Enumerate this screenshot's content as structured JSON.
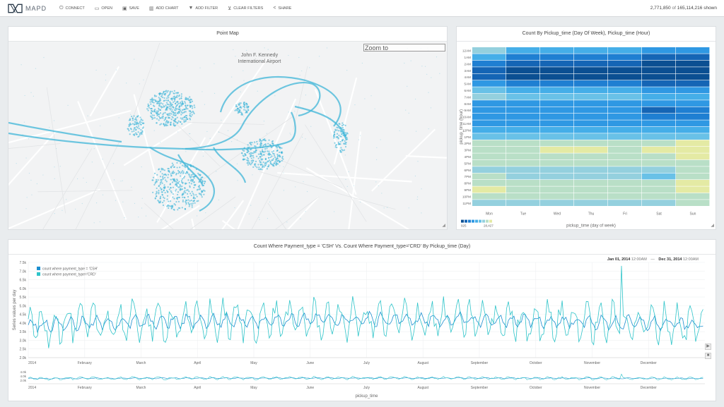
{
  "app": {
    "name": "MAPD"
  },
  "toolbar": [
    {
      "label": "CONNECT",
      "icon": "power-icon",
      "glyph": "⏻"
    },
    {
      "label": "OPEN",
      "icon": "folder-icon",
      "glyph": "▭"
    },
    {
      "label": "SAVE",
      "icon": "save-icon",
      "glyph": "▣"
    },
    {
      "label": "ADD CHART",
      "icon": "bar-chart-icon",
      "glyph": "▥"
    },
    {
      "label": "ADD FILTER",
      "icon": "filter-icon",
      "glyph": "▼"
    },
    {
      "label": "CLEAR FILTERS",
      "icon": "clear-filter-icon",
      "glyph": "⊻"
    },
    {
      "label": "SHARE",
      "icon": "share-icon",
      "glyph": "<"
    }
  ],
  "count": {
    "shown": "2,771,850",
    "total": "165,114,216",
    "suffix": "shown"
  },
  "point_map": {
    "title": "Point Map",
    "place_label_line1": "John F. Kennedy",
    "place_label_line2": "International Airport",
    "zoom_placeholder": "Zoom to",
    "point_color": "#3fb6d8"
  },
  "heatmap": {
    "title": "Count By Pickup_time (Day Of Week), Pickup_time (Hour)",
    "ylabel": "pickup_time (hour)",
    "xlabel": "pickup_time (day of week)",
    "days": [
      "Mon",
      "Tue",
      "Wed",
      "Thu",
      "Fri",
      "Sat",
      "Sun"
    ],
    "hours": [
      "12AM",
      "1AM",
      "2AM",
      "3AM",
      "4AM",
      "5AM",
      "6AM",
      "7AM",
      "8AM",
      "9AM",
      "10AM",
      "11AM",
      "12PM",
      "1PM",
      "2PM",
      "3PM",
      "4PM",
      "5PM",
      "6PM",
      "7PM",
      "8PM",
      "9PM",
      "10PM",
      "11PM"
    ],
    "legend_min": "925",
    "legend_max": "28,427",
    "colors": [
      "#0b4f92",
      "#1565b5",
      "#1f7fd2",
      "#2f98e3",
      "#45aee8",
      "#69c1e7",
      "#94d0de",
      "#b9dfc7",
      "#e4eaa4"
    ],
    "matrix": [
      [
        6,
        4,
        4,
        4,
        4,
        3,
        3
      ],
      [
        4,
        2,
        2,
        2,
        2,
        1,
        1
      ],
      [
        2,
        1,
        1,
        1,
        1,
        0,
        0
      ],
      [
        1,
        0,
        0,
        0,
        0,
        0,
        0
      ],
      [
        1,
        0,
        0,
        0,
        0,
        0,
        0
      ],
      [
        3,
        2,
        2,
        2,
        2,
        1,
        1
      ],
      [
        5,
        4,
        4,
        4,
        4,
        3,
        3
      ],
      [
        6,
        5,
        5,
        5,
        5,
        4,
        4
      ],
      [
        3,
        3,
        3,
        3,
        3,
        3,
        3
      ],
      [
        3,
        3,
        3,
        3,
        3,
        1,
        2
      ],
      [
        3,
        3,
        3,
        3,
        3,
        2,
        2
      ],
      [
        3,
        3,
        3,
        3,
        3,
        3,
        3
      ],
      [
        4,
        4,
        4,
        4,
        4,
        4,
        4
      ],
      [
        5,
        5,
        5,
        5,
        5,
        5,
        5
      ],
      [
        7,
        7,
        7,
        7,
        7,
        7,
        8
      ],
      [
        7,
        7,
        8,
        8,
        7,
        8,
        8
      ],
      [
        7,
        7,
        7,
        7,
        7,
        7,
        8
      ],
      [
        7,
        7,
        7,
        7,
        7,
        7,
        7
      ],
      [
        6,
        6,
        6,
        6,
        6,
        6,
        7
      ],
      [
        7,
        6,
        6,
        6,
        6,
        5,
        7
      ],
      [
        7,
        7,
        7,
        7,
        7,
        7,
        8
      ],
      [
        8,
        7,
        7,
        7,
        7,
        7,
        8
      ],
      [
        7,
        7,
        7,
        7,
        7,
        7,
        7
      ],
      [
        6,
        6,
        6,
        6,
        6,
        6,
        7
      ]
    ]
  },
  "chart_data": {
    "type": "line",
    "title": "Count Where Payment_type = 'CSH' Vs. Count Where Payment_type='CRD' By Pickup_time (Day)",
    "xlabel": "pickup_time",
    "ylabel": "Series values per day",
    "yticks": [
      "7.5k",
      "7.0k",
      "6.5k",
      "6.0k",
      "5.5k",
      "5.0k",
      "4.5k",
      "4.0k",
      "3.5k",
      "3.0k",
      "2.5k",
      "2.0k"
    ],
    "ylim": [
      2000,
      7500
    ],
    "xticks": [
      "2014",
      "February",
      "March",
      "April",
      "May",
      "June",
      "July",
      "August",
      "September",
      "October",
      "November",
      "December"
    ],
    "range_start": "Jan 01, 2014",
    "range_start_time": "12:00AM",
    "range_sep": "—",
    "range_end": "Dec 31, 2014",
    "range_end_time": "12:00AM",
    "series": [
      {
        "name": "count where payment_type = 'CSH'",
        "color": "#1c8fd0",
        "base": 3900,
        "amp": 500
      },
      {
        "name": "count where payment_type='CRD'",
        "color": "#2ec4c9",
        "base": 3900,
        "amp": 1400
      }
    ],
    "mini_yticks": [
      "4.0k",
      "4.0k",
      "2.0k"
    ]
  }
}
